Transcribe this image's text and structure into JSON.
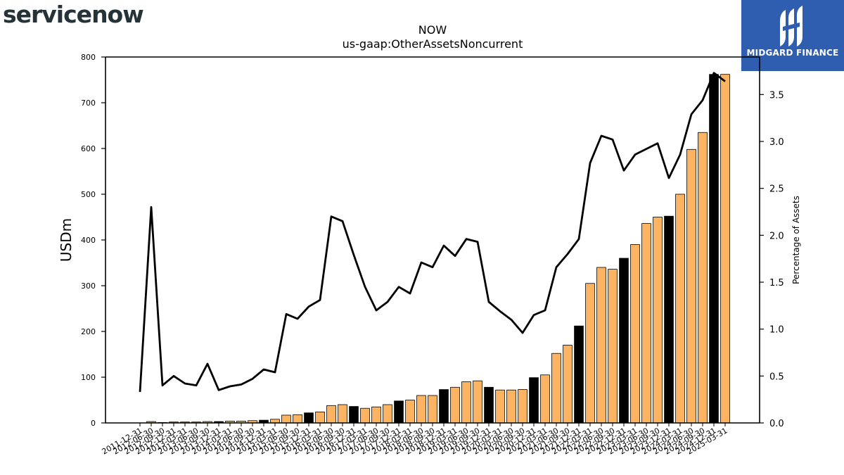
{
  "branding": {
    "left_logo_text": "servicenow",
    "right_logo_text": "MIDGARD FINANCE"
  },
  "colors": {
    "bar_normal": "#fdb462",
    "bar_highlight": "#000000",
    "line": "#000000",
    "logo_bg": "#2f5eb0",
    "logo_left_text": "#253238",
    "logo_left_accent": "#7fbf9f"
  },
  "chart_data": {
    "type": "bar",
    "title": "NOW",
    "subtitle": "us-gaap:OtherAssetsNoncurrent",
    "ylabel": "USDm",
    "y2label": "Percentage of Assets",
    "ylim": [
      0,
      800
    ],
    "y2lim": [
      0,
      3.9
    ],
    "yticks": [
      "0",
      "100",
      "200",
      "300",
      "400",
      "500",
      "600",
      "700",
      "800"
    ],
    "y2ticks": [
      "0.0",
      "0.5",
      "1.0",
      "1.5",
      "2.0",
      "2.5",
      "3.0",
      "3.5"
    ],
    "grid": false,
    "categories": [
      "2011-12-31",
      "2012-06-30",
      "2012-09-30",
      "2012-12-31",
      "2013-03-31",
      "2013-06-30",
      "2013-09-30",
      "2013-12-31",
      "2014-03-31",
      "2014-06-30",
      "2014-09-30",
      "2014-12-31",
      "2015-03-31",
      "2015-06-30",
      "2015-09-30",
      "2015-12-31",
      "2016-03-31",
      "2016-06-30",
      "2016-09-30",
      "2016-12-31",
      "2017-03-31",
      "2017-06-30",
      "2017-09-30",
      "2017-12-31",
      "2018-03-31",
      "2018-06-30",
      "2018-09-30",
      "2018-12-31",
      "2019-03-31",
      "2019-06-30",
      "2019-09-30",
      "2019-12-31",
      "2020-03-31",
      "2020-06-30",
      "2020-09-30",
      "2020-12-31",
      "2021-03-31",
      "2021-06-30",
      "2021-09-30",
      "2021-12-31",
      "2022-03-31",
      "2022-06-30",
      "2022-09-30",
      "2022-12-31",
      "2023-03-31",
      "2023-06-30",
      "2023-09-30",
      "2023-12-31",
      "2024-03-31",
      "2024-06-30",
      "2024-09-30",
      "2024-12-31",
      "2025-03-31"
    ],
    "series": [
      {
        "type": "bar",
        "axis": "left",
        "values": [
          0,
          3,
          1,
          2,
          2,
          2,
          3,
          3,
          4,
          4,
          5,
          6,
          8,
          17,
          18,
          22,
          24,
          38,
          40,
          36,
          32,
          35,
          40,
          48,
          50,
          60,
          60,
          73,
          78,
          90,
          92,
          78,
          72,
          72,
          73,
          99,
          105,
          152,
          170,
          212,
          305,
          340,
          336,
          360,
          390,
          436,
          450,
          452,
          500,
          598,
          635,
          762,
          762
        ],
        "highlight": [
          false,
          false,
          false,
          false,
          false,
          false,
          false,
          true,
          false,
          false,
          false,
          true,
          false,
          false,
          false,
          true,
          false,
          false,
          false,
          true,
          false,
          false,
          false,
          true,
          false,
          false,
          false,
          true,
          false,
          false,
          false,
          true,
          false,
          false,
          false,
          true,
          false,
          false,
          false,
          true,
          false,
          false,
          false,
          true,
          false,
          false,
          false,
          true,
          false,
          false,
          false,
          true,
          false
        ]
      },
      {
        "type": "line",
        "axis": "right",
        "values": [
          0.33,
          2.3,
          0.4,
          0.5,
          0.42,
          0.4,
          0.63,
          0.35,
          0.39,
          0.41,
          0.47,
          0.57,
          0.54,
          1.16,
          1.11,
          1.24,
          1.31,
          2.2,
          2.15,
          1.79,
          1.45,
          1.2,
          1.29,
          1.45,
          1.38,
          1.71,
          1.66,
          1.89,
          1.78,
          1.96,
          1.93,
          1.29,
          1.19,
          1.1,
          0.96,
          1.15,
          1.2,
          1.66,
          1.8,
          1.96,
          2.77,
          3.06,
          3.02,
          2.69,
          2.86,
          2.92,
          2.98,
          2.61,
          2.86,
          3.29,
          3.44,
          3.73,
          3.64
        ]
      }
    ]
  }
}
